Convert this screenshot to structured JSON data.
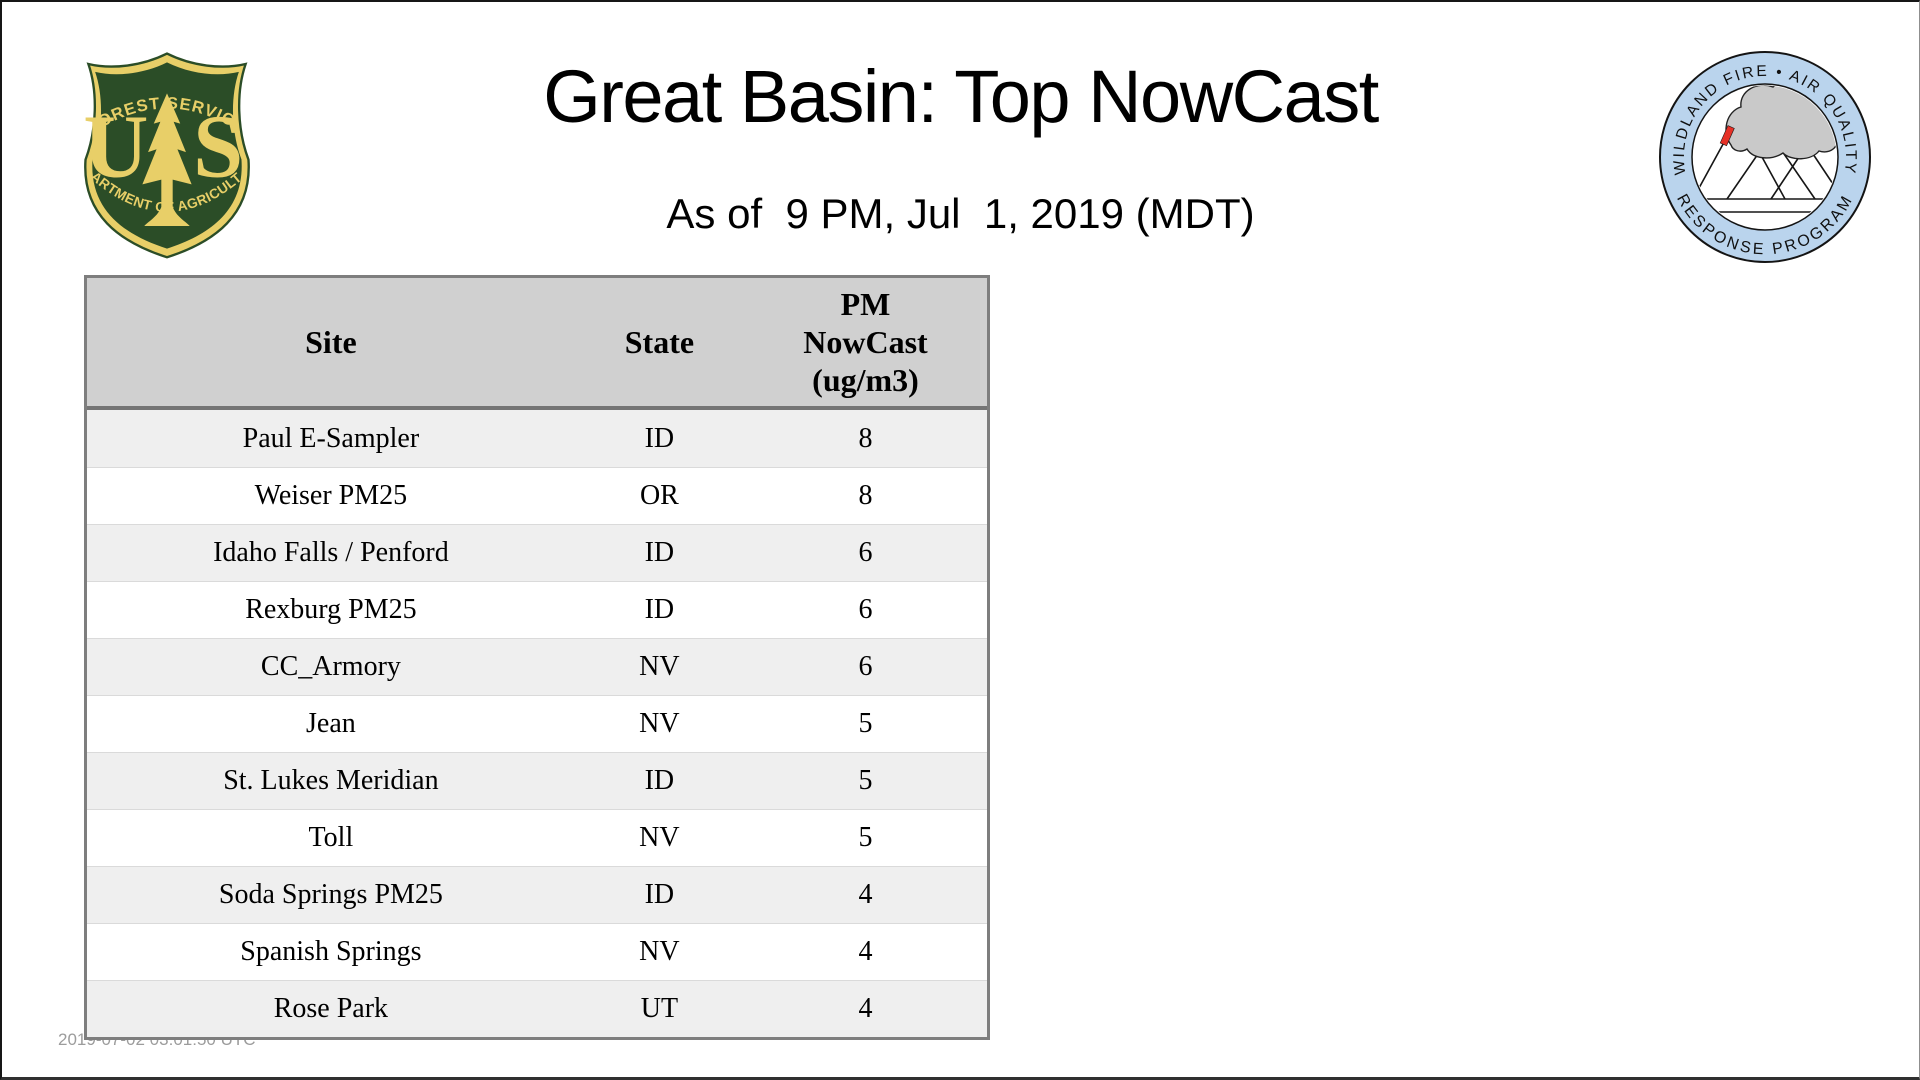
{
  "page": {
    "title": "Great Basin: Top NowCast",
    "subtitle": "As of  9 PM, Jul  1, 2019 (MDT)",
    "timestamp": "2019-07-02 03:01:50 UTC"
  },
  "logos": {
    "forest_service": {
      "arc_top": "FOREST SERVICE",
      "letter_left": "U",
      "letter_right": "S",
      "arc_bottom": "DEPARTMENT OF AGRICULTURE",
      "green": "#2b4d27",
      "gold": "#e8cf68"
    },
    "air_quality": {
      "arc_top": "WILDLAND FIRE • AIR QUALITY",
      "arc_bottom": "RESPONSE PROGRAM",
      "ring_color": "#bad4ed",
      "smoke_color": "#c9c9c9",
      "fire_color": "#e63127"
    }
  },
  "table": {
    "headers": [
      "Site",
      "State",
      "PM\nNowCast\n(ug/m3)"
    ],
    "rows": [
      [
        "Paul E-Sampler",
        "ID",
        "8"
      ],
      [
        "Weiser PM25",
        "OR",
        "8"
      ],
      [
        "Idaho Falls / Penford",
        "ID",
        "6"
      ],
      [
        "Rexburg PM25",
        "ID",
        "6"
      ],
      [
        "CC_Armory",
        "NV",
        "6"
      ],
      [
        "Jean",
        "NV",
        "5"
      ],
      [
        "St. Lukes Meridian",
        "ID",
        "5"
      ],
      [
        "Toll",
        "NV",
        "5"
      ],
      [
        "Soda Springs PM25",
        "ID",
        "4"
      ],
      [
        "Spanish Springs",
        "NV",
        "4"
      ],
      [
        "Rose Park",
        "UT",
        "4"
      ]
    ],
    "colors": {
      "header_bg": "#d0d0d0",
      "row_alt_bg": "#efefef",
      "row_bg": "#ffffff",
      "border": "#7e7e7e"
    }
  },
  "chart_data": {
    "type": "table",
    "title": "Great Basin: Top NowCast",
    "subtitle": "As of  9 PM, Jul  1, 2019 (MDT)",
    "columns": [
      "Site",
      "State",
      "PM NowCast (ug/m3)"
    ],
    "rows": [
      {
        "site": "Paul E-Sampler",
        "state": "ID",
        "pm_nowcast_ug_m3": 8
      },
      {
        "site": "Weiser PM25",
        "state": "OR",
        "pm_nowcast_ug_m3": 8
      },
      {
        "site": "Idaho Falls / Penford",
        "state": "ID",
        "pm_nowcast_ug_m3": 6
      },
      {
        "site": "Rexburg PM25",
        "state": "ID",
        "pm_nowcast_ug_m3": 6
      },
      {
        "site": "CC_Armory",
        "state": "NV",
        "pm_nowcast_ug_m3": 6
      },
      {
        "site": "Jean",
        "state": "NV",
        "pm_nowcast_ug_m3": 5
      },
      {
        "site": "St. Lukes Meridian",
        "state": "ID",
        "pm_nowcast_ug_m3": 5
      },
      {
        "site": "Toll",
        "state": "NV",
        "pm_nowcast_ug_m3": 5
      },
      {
        "site": "Soda Springs PM25",
        "state": "ID",
        "pm_nowcast_ug_m3": 4
      },
      {
        "site": "Spanish Springs",
        "state": "NV",
        "pm_nowcast_ug_m3": 4
      },
      {
        "site": "Rose Park",
        "state": "UT",
        "pm_nowcast_ug_m3": 4
      }
    ],
    "layout": {
      "header_shaded": true,
      "zebra_rows": true,
      "all_cells_centered": true
    }
  }
}
